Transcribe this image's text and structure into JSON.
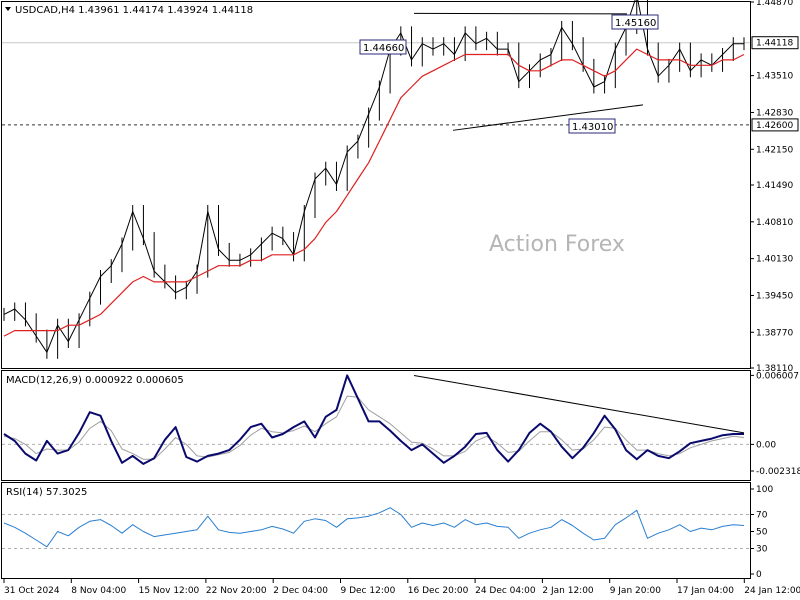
{
  "chart_data": [
    {
      "type": "line",
      "title": "USDCAD,H4  1.43961 1.44174 1.43924 1.44118",
      "watermark": "Action Forex",
      "ylim": [
        1.3811,
        1.4487
      ],
      "y_ticks": [
        "1.44870",
        "1.44118",
        "1.43510",
        "1.42830",
        "1.42600",
        "1.42150",
        "1.41490",
        "1.40810",
        "1.40130",
        "1.39450",
        "1.38770",
        "1.38110"
      ],
      "current_price": "1.44118",
      "support_level": "1.42600",
      "annotations": [
        "1.44660",
        "1.45160",
        "1.43010"
      ],
      "series": [
        {
          "values": [
            1.391,
            1.392,
            1.39,
            1.387,
            1.384,
            1.389,
            1.386,
            1.39,
            1.394,
            1.398,
            1.4,
            1.404,
            1.41,
            1.405,
            1.399,
            1.397,
            1.395,
            1.396,
            1.399,
            1.41,
            1.403,
            1.401,
            1.401,
            1.402,
            1.404,
            1.406,
            1.405,
            1.402,
            1.41,
            1.416,
            1.418,
            1.415,
            1.421,
            1.423,
            1.428,
            1.433,
            1.44,
            1.443,
            1.438,
            1.441,
            1.44,
            1.441,
            1.439,
            1.443,
            1.441,
            1.442,
            1.44,
            1.44,
            1.434,
            1.436,
            1.438,
            1.439,
            1.444,
            1.441,
            1.437,
            1.433,
            1.434,
            1.44,
            1.444,
            1.45,
            1.44,
            1.435,
            1.437,
            1.44,
            1.436,
            1.438,
            1.437,
            1.439,
            1.441,
            1.441
          ]
        },
        {
          "values": [
            1.387,
            1.388,
            1.388,
            1.388,
            1.388,
            1.388,
            1.389,
            1.389,
            1.39,
            1.391,
            1.393,
            1.395,
            1.397,
            1.398,
            1.397,
            1.397,
            1.397,
            1.397,
            1.398,
            1.399,
            1.4,
            1.4,
            1.4,
            1.401,
            1.401,
            1.402,
            1.402,
            1.402,
            1.403,
            1.405,
            1.408,
            1.41,
            1.413,
            1.416,
            1.419,
            1.423,
            1.427,
            1.431,
            1.433,
            1.435,
            1.436,
            1.437,
            1.438,
            1.439,
            1.439,
            1.439,
            1.439,
            1.439,
            1.437,
            1.436,
            1.436,
            1.437,
            1.438,
            1.438,
            1.437,
            1.436,
            1.435,
            1.436,
            1.438,
            1.44,
            1.439,
            1.438,
            1.438,
            1.438,
            1.437,
            1.437,
            1.437,
            1.438,
            1.438,
            1.439
          ]
        }
      ]
    },
    {
      "type": "line",
      "title": "MACD(12,26,9) 0.000922 0.000605",
      "ylim": [
        -0.0031,
        0.0063
      ],
      "y_ticks": [
        "0.006007",
        "0.00",
        "-0.002318"
      ],
      "series": [
        {
          "values": [
            0.0009,
            0.0003,
            -0.0008,
            -0.0014,
            0.0003,
            -0.0008,
            -0.0005,
            0.001,
            0.0028,
            0.0025,
            0.0003,
            -0.0016,
            -0.001,
            -0.0017,
            -0.0012,
            0.0004,
            0.0015,
            -0.0011,
            -0.0015,
            -0.001,
            -0.0008,
            -0.0005,
            0.0004,
            0.0015,
            0.0018,
            0.0006,
            0.0009,
            0.0015,
            0.002,
            0.0006,
            0.0024,
            0.003,
            0.006,
            0.004,
            0.002,
            0.002,
            0.0012,
            0.0003,
            -0.0005,
            0.0,
            -0.0008,
            -0.0016,
            -0.001,
            -0.0002,
            0.0009,
            0.001,
            -0.0005,
            -0.0015,
            -0.0005,
            0.001,
            0.0018,
            0.0011,
            -0.0002,
            -0.0012,
            -0.0003,
            0.001,
            0.0025,
            0.0013,
            -0.0005,
            -0.0013,
            -0.0005,
            -0.001,
            -0.0012,
            -0.0006,
            0.0001,
            0.0003,
            0.0005,
            0.0008,
            0.0009,
            0.0009
          ]
        },
        {
          "values": [
            0.0007,
            0.0005,
            0.0,
            -0.0008,
            -0.0004,
            -0.0005,
            -0.0005,
            0.0002,
            0.0014,
            0.002,
            0.0012,
            -0.0004,
            -0.0008,
            -0.0013,
            -0.0013,
            -0.0004,
            0.0006,
            0.0,
            -0.001,
            -0.0011,
            -0.0009,
            -0.0007,
            -0.0001,
            0.0008,
            0.0014,
            0.0011,
            0.001,
            0.0012,
            0.0016,
            0.0011,
            0.0018,
            0.0024,
            0.0042,
            0.0041,
            0.003,
            0.0024,
            0.0018,
            0.001,
            0.0002,
            0.0001,
            -0.0004,
            -0.001,
            -0.001,
            -0.0006,
            0.0003,
            0.0007,
            0.0001,
            -0.0007,
            -0.0006,
            0.0003,
            0.0011,
            0.0011,
            0.0004,
            -0.0005,
            -0.0004,
            0.0004,
            0.0015,
            0.0014,
            0.0004,
            -0.0005,
            -0.0005,
            -0.0008,
            -0.001,
            -0.0008,
            -0.0003,
            0.0,
            0.0003,
            0.0005,
            0.0007,
            0.0006
          ]
        }
      ]
    },
    {
      "type": "line",
      "title": "RSI(14) 57.3025",
      "ylim": [
        0,
        100
      ],
      "y_ticks": [
        "100",
        "70",
        "50",
        "30",
        "0"
      ],
      "series": [
        {
          "values": [
            60,
            55,
            48,
            40,
            32,
            50,
            45,
            55,
            62,
            64,
            57,
            48,
            58,
            50,
            44,
            46,
            48,
            50,
            52,
            68,
            52,
            49,
            48,
            50,
            52,
            56,
            53,
            48,
            62,
            65,
            63,
            55,
            65,
            66,
            68,
            72,
            78,
            70,
            55,
            60,
            57,
            60,
            55,
            64,
            58,
            60,
            56,
            55,
            42,
            48,
            52,
            55,
            64,
            57,
            48,
            40,
            42,
            58,
            66,
            75,
            42,
            48,
            52,
            58,
            50,
            54,
            52,
            56,
            58,
            57
          ]
        }
      ]
    }
  ],
  "x_axis": {
    "labels": [
      "31 Oct 2024",
      "8 Nov 04:00",
      "15 Nov 12:00",
      "22 Nov 20:00",
      "2 Dec 04:00",
      "9 Dec 12:00",
      "16 Dec 20:00",
      "24 Dec 04:00",
      "2 Jan 12:00",
      "9 Jan 20:00",
      "17 Jan 04:00",
      "24 Jan 12:00"
    ]
  },
  "colors": {
    "price": "#000000",
    "moving_average": "#e02020",
    "macd": "#0a0a6e",
    "macd_signal": "#a0a0a0",
    "rsi": "#2a7fd0",
    "grid_dashed": "#b0b0b0",
    "price_label_bg": "#ffffff",
    "annotation_border": "#2a2a7a"
  }
}
